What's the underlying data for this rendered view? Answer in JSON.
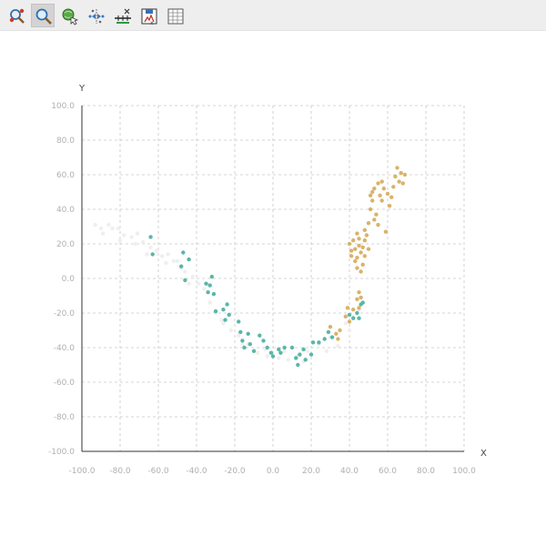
{
  "toolbar": {
    "tools": [
      {
        "icon": "zoom-select-icon",
        "active": false
      },
      {
        "icon": "zoom-icon",
        "active": true
      },
      {
        "icon": "globe-select-icon",
        "active": false
      },
      {
        "icon": "move-points-icon",
        "active": false
      },
      {
        "icon": "axis-edit-icon",
        "active": false
      },
      {
        "icon": "save-export-icon",
        "active": false
      },
      {
        "icon": "data-table-icon",
        "active": false
      }
    ]
  },
  "chart_data": {
    "type": "scatter",
    "xlabel": "X",
    "ylabel": "Y",
    "xlim": [
      -100,
      100
    ],
    "ylim": [
      -100,
      100
    ],
    "xticks": [
      "-100.0",
      "-80.0",
      "-60.0",
      "-40.0",
      "-20.0",
      "0.0",
      "20.0",
      "40.0",
      "60.0",
      "80.0",
      "100.0"
    ],
    "yticks": [
      "-100.0",
      "-80.0",
      "-60.0",
      "-40.0",
      "-20.0",
      "0.0",
      "20.0",
      "40.0",
      "60.0",
      "80.0",
      "100.0"
    ],
    "grid": true,
    "series": [
      {
        "color": "#f0eeee",
        "points": [
          [
            -93,
            31
          ],
          [
            -90,
            29
          ],
          [
            -86,
            31
          ],
          [
            -84,
            29
          ],
          [
            -81,
            29
          ],
          [
            -78,
            25
          ],
          [
            -74,
            24
          ],
          [
            -71,
            26
          ],
          [
            -68,
            21
          ],
          [
            -64,
            18
          ],
          [
            -61,
            16
          ],
          [
            -58,
            13
          ],
          [
            -55,
            14
          ],
          [
            -52,
            10
          ],
          [
            -50,
            10
          ],
          [
            -46,
            4
          ],
          [
            -42,
            1
          ],
          [
            -39,
            -3
          ],
          [
            -36,
            -6
          ],
          [
            -30,
            -20
          ],
          [
            -26,
            -26
          ],
          [
            -22,
            -30
          ],
          [
            -18,
            -33
          ],
          [
            -13,
            -38
          ],
          [
            -8,
            -43
          ],
          [
            -3,
            -45
          ],
          [
            3,
            -46
          ],
          [
            8,
            -47
          ],
          [
            13,
            -45
          ],
          [
            18,
            -42
          ],
          [
            24,
            -38
          ],
          [
            30,
            -34
          ],
          [
            35,
            -30
          ],
          [
            38,
            -26
          ],
          [
            42,
            -22
          ],
          [
            45,
            -18
          ],
          [
            -89,
            26
          ],
          [
            -80,
            22
          ],
          [
            -66,
            14
          ],
          [
            -56,
            9
          ],
          [
            -44,
            -3
          ],
          [
            -33,
            -14
          ],
          [
            -27,
            -24
          ],
          [
            -16,
            -38
          ],
          [
            -4,
            -41
          ],
          [
            6,
            -42
          ],
          [
            16,
            -48
          ],
          [
            28,
            -42
          ],
          [
            34,
            -39
          ],
          [
            40,
            -30
          ],
          [
            -72,
            20
          ],
          [
            -48,
            6
          ]
        ]
      },
      {
        "color": "#5bb6a9",
        "points": [
          [
            -64,
            24
          ],
          [
            -63,
            14
          ],
          [
            -47,
            15
          ],
          [
            -46,
            -1
          ],
          [
            -44,
            11
          ],
          [
            -48,
            7
          ],
          [
            -35,
            -3
          ],
          [
            -34,
            -8
          ],
          [
            -33,
            -4
          ],
          [
            -32,
            1
          ],
          [
            -31,
            -9
          ],
          [
            -30,
            -19
          ],
          [
            -26,
            -18
          ],
          [
            -25,
            -24
          ],
          [
            -24,
            -15
          ],
          [
            -23,
            -21
          ],
          [
            -18,
            -25
          ],
          [
            -17,
            -31
          ],
          [
            -16,
            -36
          ],
          [
            -15,
            -40
          ],
          [
            -13,
            -32
          ],
          [
            -12,
            -38
          ],
          [
            -10,
            -42
          ],
          [
            -7,
            -33
          ],
          [
            -5,
            -36
          ],
          [
            -3,
            -40
          ],
          [
            -1,
            -43
          ],
          [
            0,
            -45
          ],
          [
            3,
            -41
          ],
          [
            4,
            -43
          ],
          [
            6,
            -40
          ],
          [
            10,
            -40
          ],
          [
            12,
            -46
          ],
          [
            13,
            -50
          ],
          [
            14,
            -44
          ],
          [
            16,
            -41
          ],
          [
            17,
            -47
          ],
          [
            20,
            -44
          ],
          [
            21,
            -37
          ],
          [
            24,
            -37
          ],
          [
            27,
            -35
          ],
          [
            29,
            -31
          ],
          [
            31,
            -34
          ],
          [
            40,
            -21
          ],
          [
            42,
            -23
          ],
          [
            44,
            -20
          ],
          [
            45,
            -23
          ],
          [
            46,
            -15
          ],
          [
            47,
            -14
          ]
        ]
      },
      {
        "color": "#d8b36a",
        "points": [
          [
            30,
            -28
          ],
          [
            33,
            -32
          ],
          [
            34,
            -35
          ],
          [
            35,
            -30
          ],
          [
            38,
            -22
          ],
          [
            39,
            -17
          ],
          [
            40,
            -25
          ],
          [
            42,
            -18
          ],
          [
            44,
            -12
          ],
          [
            45,
            -8
          ],
          [
            45,
            -17
          ],
          [
            46,
            -11
          ],
          [
            40,
            20
          ],
          [
            41,
            13
          ],
          [
            41,
            16
          ],
          [
            42,
            22
          ],
          [
            43,
            10
          ],
          [
            43,
            17
          ],
          [
            44,
            6
          ],
          [
            44,
            12
          ],
          [
            44,
            26
          ],
          [
            45,
            19
          ],
          [
            45,
            23
          ],
          [
            46,
            15
          ],
          [
            46,
            4
          ],
          [
            47,
            8
          ],
          [
            47,
            18
          ],
          [
            48,
            28
          ],
          [
            48,
            13
          ],
          [
            48,
            22
          ],
          [
            49,
            25
          ],
          [
            50,
            32
          ],
          [
            50,
            17
          ],
          [
            51,
            40
          ],
          [
            51,
            48
          ],
          [
            52,
            45
          ],
          [
            52,
            50
          ],
          [
            53,
            34
          ],
          [
            53,
            52
          ],
          [
            54,
            37
          ],
          [
            55,
            55
          ],
          [
            55,
            31
          ],
          [
            56,
            48
          ],
          [
            57,
            56
          ],
          [
            57,
            45
          ],
          [
            58,
            52
          ],
          [
            59,
            27
          ],
          [
            60,
            49
          ],
          [
            61,
            42
          ],
          [
            62,
            47
          ],
          [
            63,
            53
          ],
          [
            64,
            59
          ],
          [
            65,
            64
          ],
          [
            66,
            56
          ],
          [
            67,
            61
          ],
          [
            68,
            55
          ],
          [
            69,
            60
          ]
        ]
      }
    ]
  }
}
